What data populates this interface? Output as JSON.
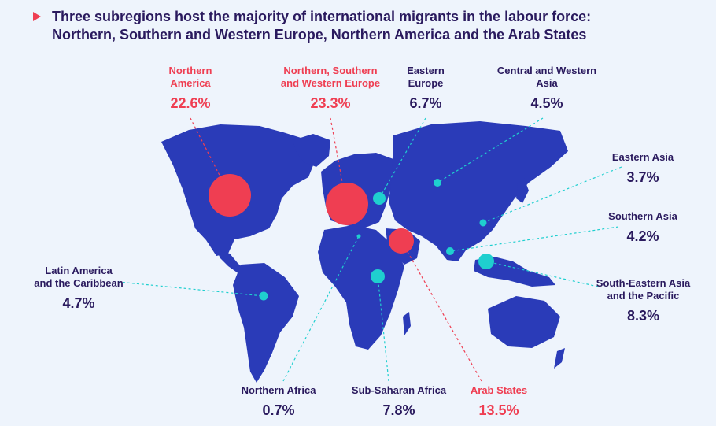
{
  "title": {
    "line1": "Three subregions host the majority of international migrants in the labour force:",
    "line2": "Northern, Southern and Western Europe, Northern America and the Arab States"
  },
  "colors": {
    "land": "#2a3bb8",
    "highlight": "#ef3e52",
    "teal": "#1fcfcf",
    "text": "#2a1a5e",
    "background": "#eef4fc"
  },
  "regions": [
    {
      "id": "northern-america",
      "name": "Northern\nAmerica",
      "value": "22.6%",
      "highlight": true
    },
    {
      "id": "nsw-europe",
      "name": "Northern, Southern\nand Western Europe",
      "value": "23.3%",
      "highlight": true
    },
    {
      "id": "eastern-europe",
      "name": "Eastern\nEurope",
      "value": "6.7%",
      "highlight": false
    },
    {
      "id": "central-western-asia",
      "name": "Central and Western\nAsia",
      "value": "4.5%",
      "highlight": false
    },
    {
      "id": "eastern-asia",
      "name": "Eastern Asia",
      "value": "3.7%",
      "highlight": false
    },
    {
      "id": "southern-asia",
      "name": "Southern Asia",
      "value": "4.2%",
      "highlight": false
    },
    {
      "id": "south-eastern-asia-pacific",
      "name": "South-Eastern Asia\nand the Pacific",
      "value": "8.3%",
      "highlight": false
    },
    {
      "id": "latin-america-caribbean",
      "name": "Latin America\nand the Caribbean",
      "value": "4.7%",
      "highlight": false
    },
    {
      "id": "northern-africa",
      "name": "Northern Africa",
      "value": "0.7%",
      "highlight": false
    },
    {
      "id": "sub-saharan-africa",
      "name": "Sub-Saharan Africa",
      "value": "7.8%",
      "highlight": false
    },
    {
      "id": "arab-states",
      "name": "Arab States",
      "value": "13.5%",
      "highlight": true
    }
  ]
}
